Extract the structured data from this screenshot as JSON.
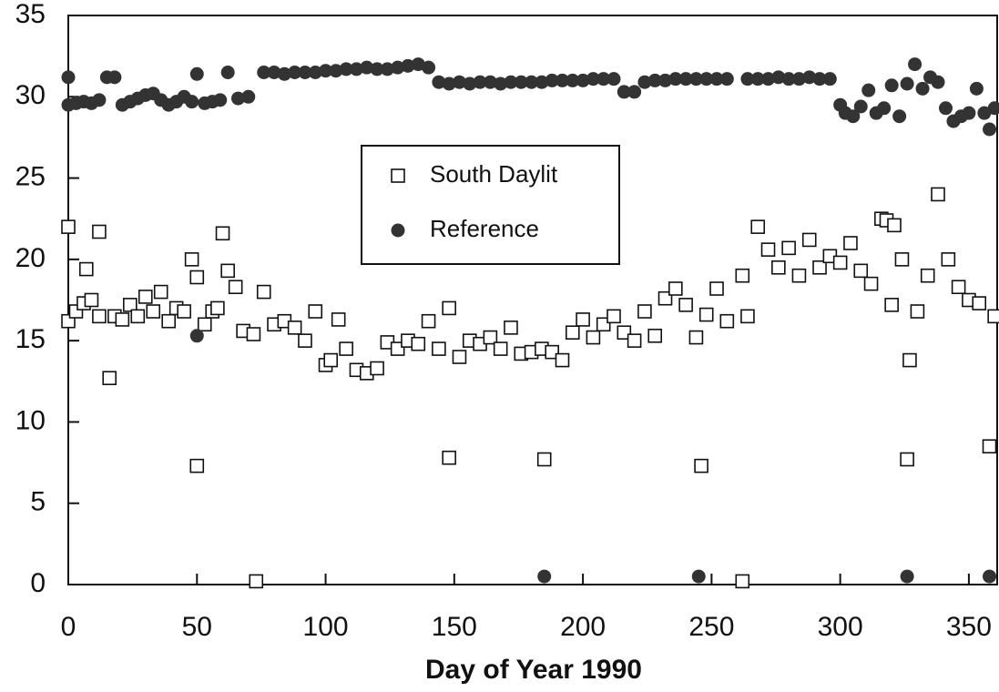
{
  "chart_data": {
    "type": "scatter",
    "xlabel": "Day of Year 1990",
    "xlim": [
      0,
      361
    ],
    "xticks": [
      0,
      50,
      100,
      150,
      200,
      250,
      300,
      350
    ],
    "ylim": [
      0,
      35
    ],
    "yticks": [
      0,
      5,
      10,
      15,
      20,
      25,
      30,
      35
    ],
    "series": [
      {
        "name": "South Daylit",
        "marker": "square",
        "color": "#111111",
        "x": [
          0,
          0,
          3,
          6,
          7,
          9,
          12,
          12,
          16,
          18,
          21,
          24,
          27,
          30,
          33,
          36,
          39,
          42,
          45,
          48,
          50,
          50,
          53,
          56,
          58,
          60,
          62,
          65,
          68,
          72,
          76,
          80,
          84,
          88,
          92,
          96,
          100,
          102,
          105,
          108,
          112,
          116,
          120,
          124,
          128,
          132,
          136,
          140,
          144,
          148,
          148,
          152,
          156,
          160,
          164,
          168,
          172,
          176,
          180,
          184,
          185,
          188,
          192,
          196,
          200,
          204,
          208,
          212,
          216,
          220,
          224,
          228,
          232,
          236,
          240,
          244,
          246,
          248,
          252,
          256,
          262,
          264,
          268,
          272,
          276,
          280,
          284,
          288,
          292,
          296,
          300,
          304,
          308,
          312,
          316,
          318,
          320,
          321,
          324,
          326,
          327,
          330,
          334,
          338,
          342,
          346,
          350,
          354,
          358,
          360,
          73,
          262
        ],
        "values": [
          22.0,
          16.2,
          16.8,
          17.3,
          19.4,
          17.5,
          21.7,
          16.5,
          12.7,
          16.5,
          16.3,
          17.2,
          16.5,
          17.7,
          16.8,
          18.0,
          16.2,
          17.0,
          16.8,
          20.0,
          7.3,
          18.9,
          16.0,
          16.8,
          17.0,
          21.6,
          19.3,
          18.3,
          15.6,
          15.4,
          18.0,
          16.0,
          16.2,
          15.8,
          15.0,
          16.8,
          13.5,
          13.8,
          16.3,
          14.5,
          13.2,
          13.0,
          13.3,
          14.9,
          14.5,
          15.0,
          14.8,
          16.2,
          14.5,
          17.0,
          7.8,
          14.0,
          15.0,
          14.8,
          15.2,
          14.5,
          15.8,
          14.2,
          14.3,
          14.5,
          7.7,
          14.3,
          13.8,
          15.5,
          16.3,
          15.2,
          16.0,
          16.5,
          15.5,
          15.0,
          16.8,
          15.3,
          17.6,
          18.2,
          17.2,
          15.2,
          7.3,
          16.6,
          18.2,
          16.2,
          19.0,
          16.5,
          22.0,
          20.6,
          19.5,
          20.7,
          19.0,
          21.2,
          19.5,
          20.2,
          19.8,
          21.0,
          19.3,
          18.5,
          22.5,
          22.4,
          17.2,
          22.1,
          20.0,
          7.7,
          13.8,
          16.8,
          19.0,
          24.0,
          20.0,
          18.3,
          17.5,
          17.3,
          8.5,
          16.5,
          0.2,
          0.2
        ]
      },
      {
        "name": "Reference",
        "marker": "circle",
        "color": "#333333",
        "x": [
          0,
          0,
          3,
          6,
          9,
          12,
          15,
          18,
          21,
          24,
          27,
          30,
          33,
          36,
          39,
          42,
          45,
          48,
          50,
          53,
          56,
          59,
          62,
          66,
          70,
          76,
          80,
          84,
          88,
          92,
          96,
          100,
          104,
          108,
          112,
          116,
          120,
          124,
          128,
          132,
          136,
          140,
          144,
          148,
          152,
          156,
          160,
          164,
          168,
          172,
          176,
          180,
          184,
          188,
          192,
          196,
          200,
          204,
          208,
          212,
          216,
          220,
          224,
          228,
          232,
          236,
          240,
          244,
          248,
          252,
          256,
          264,
          268,
          272,
          276,
          280,
          284,
          288,
          292,
          296,
          300,
          302,
          305,
          308,
          311,
          314,
          317,
          320,
          323,
          326,
          329,
          332,
          335,
          338,
          341,
          344,
          347,
          350,
          353,
          356,
          358,
          360,
          50,
          185,
          245,
          326,
          358
        ],
        "values": [
          31.2,
          29.5,
          29.6,
          29.7,
          29.6,
          29.8,
          31.2,
          31.2,
          29.5,
          29.7,
          29.9,
          30.1,
          30.2,
          29.8,
          29.5,
          29.7,
          30.0,
          29.7,
          31.4,
          29.6,
          29.7,
          29.8,
          31.5,
          29.9,
          30.0,
          31.5,
          31.5,
          31.4,
          31.5,
          31.5,
          31.5,
          31.6,
          31.6,
          31.7,
          31.7,
          31.8,
          31.7,
          31.7,
          31.8,
          31.9,
          32.0,
          31.8,
          30.9,
          30.8,
          30.9,
          30.8,
          30.9,
          30.9,
          30.8,
          30.9,
          30.9,
          30.9,
          30.9,
          31.0,
          31.0,
          31.0,
          31.0,
          31.1,
          31.1,
          31.1,
          30.3,
          30.3,
          30.9,
          31.0,
          31.0,
          31.1,
          31.1,
          31.1,
          31.1,
          31.1,
          31.1,
          31.1,
          31.1,
          31.1,
          31.2,
          31.1,
          31.1,
          31.2,
          31.1,
          31.1,
          29.5,
          29.0,
          28.8,
          29.4,
          30.4,
          29.0,
          29.3,
          30.7,
          28.8,
          30.8,
          32.0,
          30.5,
          31.2,
          30.9,
          29.3,
          28.5,
          28.8,
          29.0,
          30.5,
          29.0,
          28.0,
          29.3,
          15.3,
          0.5,
          0.5,
          0.5,
          0.5
        ]
      }
    ]
  }
}
